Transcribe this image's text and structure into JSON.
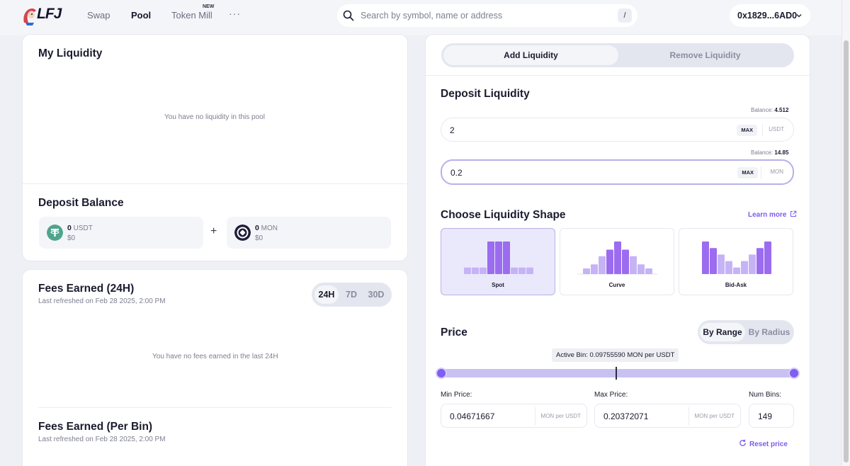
{
  "header": {
    "logo_text": "LFJ",
    "nav": [
      {
        "label": "Swap"
      },
      {
        "label": "Pool"
      },
      {
        "label": "Token Mill"
      }
    ],
    "new_badge": "NEW",
    "more": "···",
    "search": {
      "placeholder": "Search by symbol, name or address",
      "shortcut": "/"
    },
    "wallet": {
      "address": "0x1829...6AD0"
    }
  },
  "left": {
    "my_liquidity": {
      "title": "My Liquidity",
      "empty": "You have no liquidity in this pool"
    },
    "deposit_balance": {
      "title": "Deposit Balance",
      "tokens": [
        {
          "amount": "0",
          "symbol": "USDT",
          "usd": "$0",
          "color": "#4fa58c"
        },
        {
          "amount": "0",
          "symbol": "MON",
          "usd": "$0",
          "color": "#1e1e3a"
        }
      ]
    },
    "fees_24h": {
      "title": "Fees Earned (24H)",
      "refreshed": "Last refreshed on Feb 28 2025, 2:00 PM",
      "periods": [
        "24H",
        "7D",
        "30D"
      ],
      "selected": "24H",
      "empty": "You have no fees earned in the last 24H"
    },
    "fees_bin": {
      "title": "Fees Earned (Per Bin)",
      "refreshed": "Last refreshed on Feb 28 2025, 2:00 PM"
    }
  },
  "right": {
    "tabs": {
      "add": "Add Liquidity",
      "remove": "Remove Liquidity"
    },
    "deposit": {
      "title": "Deposit Liquidity",
      "inputs": [
        {
          "balance_label": "Balance:",
          "balance": "4.512",
          "value": "2",
          "max": "MAX",
          "unit": "USDT"
        },
        {
          "balance_label": "Balance:",
          "balance": "14.85",
          "value": "0.2",
          "max": "MAX",
          "unit": "MON"
        }
      ]
    },
    "shape": {
      "title": "Choose Liquidity Shape",
      "learn_more": "Learn more",
      "options": [
        {
          "label": "Spot",
          "bars": [
            0.2,
            0.2,
            0.2,
            1.0,
            1.0,
            1.0,
            0.2,
            0.2,
            0.2
          ]
        },
        {
          "label": "Curve",
          "bars": [
            0.1,
            0.3,
            0.55,
            0.75,
            1.0,
            0.75,
            0.55,
            0.3,
            0.1
          ]
        },
        {
          "label": "Bid-Ask",
          "bars": [
            1.0,
            0.8,
            0.6,
            0.4,
            0.2,
            0.4,
            0.6,
            0.8,
            1.0
          ]
        }
      ],
      "selected": "Spot",
      "accent": "#9b6cf0",
      "accent_light": "#c6b3f6"
    },
    "price": {
      "title": "Price",
      "modes": [
        "By Range",
        "By Radius"
      ],
      "selected_mode": "By Range",
      "active_bin": "Active Bin: 0.09755590 MON per USDT",
      "min_label": "Min Price:",
      "min_value": "0.04671667",
      "max_label": "Max Price:",
      "max_value": "0.20372071",
      "unit": "MON per USDT",
      "bins_label": "Num Bins:",
      "bins_value": "149",
      "reset": "Reset price"
    }
  }
}
